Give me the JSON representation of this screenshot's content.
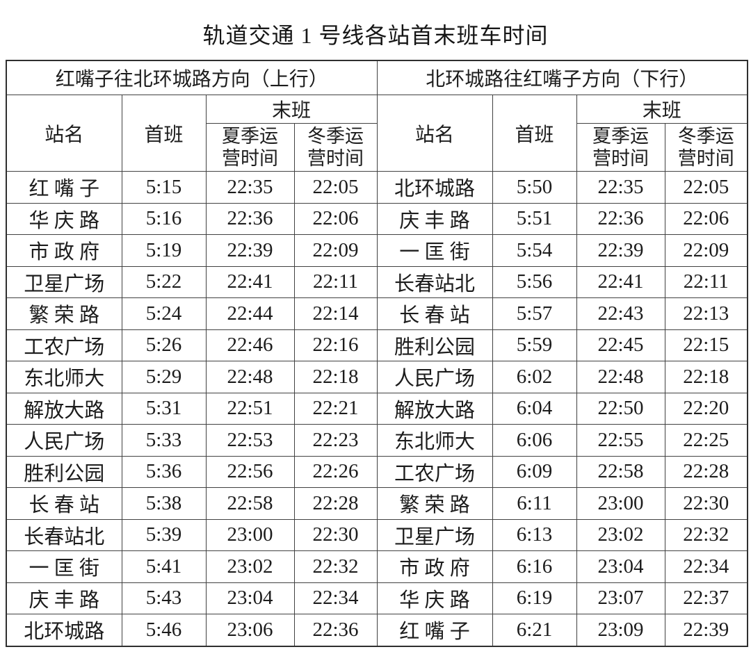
{
  "title": "轨道交通 1 号线各站首末班车时间",
  "directions": {
    "up": {
      "header": "红嘴子往北环城路方向（上行）"
    },
    "down": {
      "header": "北环城路往红嘴子方向（下行）"
    }
  },
  "columns": {
    "station": "站名",
    "first": "首班",
    "last": "末班",
    "summer": "夏季运\n营时间",
    "winter": "冬季运\n营时间"
  },
  "up_rows": [
    {
      "station": "红 嘴 子",
      "first": "5:15",
      "summer": "22:35",
      "winter": "22:05"
    },
    {
      "station": "华 庆 路",
      "first": "5:16",
      "summer": "22:36",
      "winter": "22:06"
    },
    {
      "station": "市 政 府",
      "first": "5:19",
      "summer": "22:39",
      "winter": "22:09"
    },
    {
      "station": "卫星广场",
      "first": "5:22",
      "summer": "22:41",
      "winter": "22:11"
    },
    {
      "station": "繁 荣 路",
      "first": "5:24",
      "summer": "22:44",
      "winter": "22:14"
    },
    {
      "station": "工农广场",
      "first": "5:26",
      "summer": "22:46",
      "winter": "22:16"
    },
    {
      "station": "东北师大",
      "first": "5:29",
      "summer": "22:48",
      "winter": "22:18"
    },
    {
      "station": "解放大路",
      "first": "5:31",
      "summer": "22:51",
      "winter": "22:21"
    },
    {
      "station": "人民广场",
      "first": "5:33",
      "summer": "22:53",
      "winter": "22:23"
    },
    {
      "station": "胜利公园",
      "first": "5:36",
      "summer": "22:56",
      "winter": "22:26"
    },
    {
      "station": "长 春 站",
      "first": "5:38",
      "summer": "22:58",
      "winter": "22:28"
    },
    {
      "station": "长春站北",
      "first": "5:39",
      "summer": "23:00",
      "winter": "22:30"
    },
    {
      "station": "一 匡 街",
      "first": "5:41",
      "summer": "23:02",
      "winter": "22:32"
    },
    {
      "station": "庆 丰 路",
      "first": "5:43",
      "summer": "23:04",
      "winter": "22:34"
    },
    {
      "station": "北环城路",
      "first": "5:46",
      "summer": "23:06",
      "winter": "22:36"
    }
  ],
  "down_rows": [
    {
      "station": "北环城路",
      "first": "5:50",
      "summer": "22:35",
      "winter": "22:05"
    },
    {
      "station": "庆 丰 路",
      "first": "5:51",
      "summer": "22:36",
      "winter": "22:06"
    },
    {
      "station": "一 匡 街",
      "first": "5:54",
      "summer": "22:39",
      "winter": "22:09"
    },
    {
      "station": "长春站北",
      "first": "5:56",
      "summer": "22:41",
      "winter": "22:11"
    },
    {
      "station": "长 春 站",
      "first": "5:57",
      "summer": "22:43",
      "winter": "22:13"
    },
    {
      "station": "胜利公园",
      "first": "5:59",
      "summer": "22:45",
      "winter": "22:15"
    },
    {
      "station": "人民广场",
      "first": "6:02",
      "summer": "22:48",
      "winter": "22:18"
    },
    {
      "station": "解放大路",
      "first": "6:04",
      "summer": "22:50",
      "winter": "22:20"
    },
    {
      "station": "东北师大",
      "first": "6:06",
      "summer": "22:55",
      "winter": "22:25"
    },
    {
      "station": "工农广场",
      "first": "6:09",
      "summer": "22:58",
      "winter": "22:28"
    },
    {
      "station": "繁 荣 路",
      "first": "6:11",
      "summer": "23:00",
      "winter": "22:30"
    },
    {
      "station": "卫星广场",
      "first": "6:13",
      "summer": "23:02",
      "winter": "22:32"
    },
    {
      "station": "市 政 府",
      "first": "6:16",
      "summer": "23:04",
      "winter": "22:34"
    },
    {
      "station": "华 庆 路",
      "first": "6:19",
      "summer": "23:07",
      "winter": "22:37"
    },
    {
      "station": "红 嘴 子",
      "first": "6:21",
      "summer": "23:09",
      "winter": "22:39"
    }
  ]
}
